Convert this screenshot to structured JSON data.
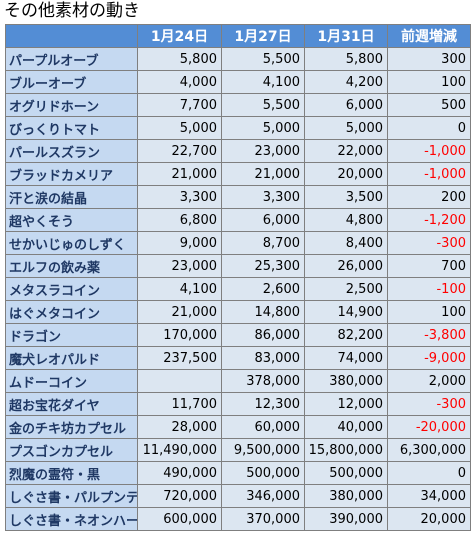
{
  "title": "その他素材の動き",
  "columns": [
    "",
    "1月24日",
    "1月27日",
    "1月31日",
    "前週増減"
  ],
  "rows": [
    {
      "name": "パープルオーブ",
      "d1": "5,800",
      "d2": "5,500",
      "d3": "5,800",
      "diff": "300",
      "neg": false
    },
    {
      "name": "ブルーオーブ",
      "d1": "4,000",
      "d2": "4,100",
      "d3": "4,200",
      "diff": "100",
      "neg": false
    },
    {
      "name": "オグリドホーン",
      "d1": "7,700",
      "d2": "5,500",
      "d3": "6,000",
      "diff": "500",
      "neg": false
    },
    {
      "name": "びっくりトマト",
      "d1": "5,000",
      "d2": "5,000",
      "d3": "5,000",
      "diff": "0",
      "neg": false
    },
    {
      "name": "パールスズラン",
      "d1": "22,700",
      "d2": "23,000",
      "d3": "22,000",
      "diff": "-1,000",
      "neg": true
    },
    {
      "name": "ブラッドカメリア",
      "d1": "21,000",
      "d2": "21,000",
      "d3": "20,000",
      "diff": "-1,000",
      "neg": true
    },
    {
      "name": "汗と涙の結晶",
      "d1": "3,300",
      "d2": "3,300",
      "d3": "3,500",
      "diff": "200",
      "neg": false
    },
    {
      "name": "超やくそう",
      "d1": "6,800",
      "d2": "6,000",
      "d3": "4,800",
      "diff": "-1,200",
      "neg": true
    },
    {
      "name": "せかいじゅのしずく",
      "d1": "9,000",
      "d2": "8,700",
      "d3": "8,400",
      "diff": "-300",
      "neg": true
    },
    {
      "name": "エルフの飲み薬",
      "d1": "23,000",
      "d2": "25,300",
      "d3": "26,000",
      "diff": "700",
      "neg": false
    },
    {
      "name": "メタスラコイン",
      "d1": "4,100",
      "d2": "2,600",
      "d3": "2,500",
      "diff": "-100",
      "neg": true
    },
    {
      "name": "はぐメタコイン",
      "d1": "21,000",
      "d2": "14,800",
      "d3": "14,900",
      "diff": "100",
      "neg": false
    },
    {
      "name": "ドラゴン",
      "d1": "170,000",
      "d2": "86,000",
      "d3": "82,200",
      "diff": "-3,800",
      "neg": true
    },
    {
      "name": "魔犬レオパルド",
      "d1": "237,500",
      "d2": "83,000",
      "d3": "74,000",
      "diff": "-9,000",
      "neg": true
    },
    {
      "name": "ムドーコイン",
      "d1": "",
      "d2": "378,000",
      "d3": "380,000",
      "diff": "2,000",
      "neg": false
    },
    {
      "name": "超お宝花ダイヤ",
      "d1": "11,700",
      "d2": "12,300",
      "d3": "12,000",
      "diff": "-300",
      "neg": true
    },
    {
      "name": "金のチキ坊カプセル",
      "d1": "28,000",
      "d2": "60,000",
      "d3": "40,000",
      "diff": "-20,000",
      "neg": true
    },
    {
      "name": "プスゴンカプセル",
      "d1": "11,490,000",
      "d2": "9,500,000",
      "d3": "15,800,000",
      "diff": "6,300,000",
      "neg": false
    },
    {
      "name": "烈魔の霊符・黒",
      "d1": "490,000",
      "d2": "500,000",
      "d3": "500,000",
      "diff": "0",
      "neg": false
    },
    {
      "name": "しぐさ書・パルプンテ",
      "d1": "720,000",
      "d2": "346,000",
      "d3": "380,000",
      "diff": "34,000",
      "neg": false
    },
    {
      "name": "しぐさ書・ネオンハート",
      "d1": "600,000",
      "d2": "370,000",
      "d3": "390,000",
      "diff": "20,000",
      "neg": false
    }
  ],
  "colors": {
    "header_bg": "#538dd5",
    "header_text": "#ffffff",
    "name_bg": "#c5d9f1",
    "name_text": "#1f3864",
    "cell_bg": "#dce6f1",
    "negative_text": "#ff0000"
  }
}
